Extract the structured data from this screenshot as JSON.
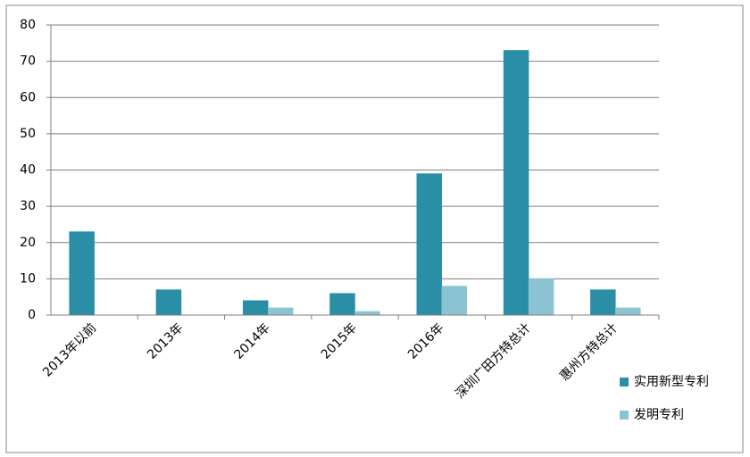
{
  "chart_data": {
    "type": "bar",
    "categories": [
      "2013年以前",
      "2013年",
      "2014年",
      "2015年",
      "2016年",
      "深圳广田方特总计",
      "惠州方特总计"
    ],
    "series": [
      {
        "name": "实用新型专利",
        "color": "#2a8ea6",
        "values": [
          23,
          7,
          4,
          6,
          39,
          73,
          7
        ]
      },
      {
        "name": "发明专利",
        "color": "#8cc3d3",
        "values": [
          0,
          0,
          2,
          1,
          8,
          10,
          2
        ]
      }
    ],
    "ylim": [
      0,
      80
    ],
    "yticks": [
      0,
      10,
      20,
      30,
      40,
      50,
      60,
      70,
      80
    ],
    "grid": true,
    "legend": "right"
  }
}
